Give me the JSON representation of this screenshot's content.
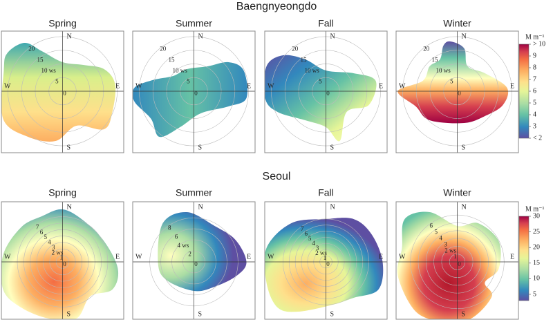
{
  "figure": {
    "directions": [
      "N",
      "E",
      "S",
      "W"
    ],
    "rows": [
      {
        "title": "Baengnyeongdo",
        "colorbar": {
          "unit": "M m⁻¹",
          "ylim": [
            2,
            10
          ],
          "yticks": [
            {
              "value": 2,
              "label": "< 2"
            },
            3,
            4,
            5,
            6,
            7,
            8,
            9,
            {
              "value": 10,
              "label": "> 10"
            }
          ]
        },
        "panels": [
          {
            "title": "Spring",
            "rlim": [
              0,
              22
            ],
            "rings": [
              {
                "value": 0,
                "label": "0"
              },
              {
                "value": 5,
                "label": "5"
              },
              {
                "value": 10,
                "label": "10 ws"
              },
              {
                "value": 15,
                "label": "15"
              },
              {
                "value": 20,
                "label": "20"
              }
            ]
          },
          {
            "title": "Summer",
            "rlim": [
              0,
              22
            ],
            "rings": [
              {
                "value": 0,
                "label": "0"
              },
              {
                "value": 5,
                "label": "5"
              },
              {
                "value": 10,
                "label": "10 ws"
              },
              {
                "value": 15,
                "label": "15"
              },
              {
                "value": 20,
                "label": "20"
              }
            ]
          },
          {
            "title": "Fall",
            "rlim": [
              0,
              22
            ],
            "rings": [
              {
                "value": 0,
                "label": "0"
              },
              {
                "value": 5,
                "label": "5"
              },
              {
                "value": 10,
                "label": "10 ws"
              },
              {
                "value": 15,
                "label": "15"
              },
              {
                "value": 20,
                "label": "20"
              }
            ]
          },
          {
            "title": "Winter",
            "rlim": [
              0,
              22
            ],
            "rings": [
              {
                "value": 0,
                "label": "0"
              },
              {
                "value": 5,
                "label": "5"
              },
              {
                "value": 10,
                "label": "10 ws"
              },
              {
                "value": 15,
                "label": "15"
              },
              {
                "value": 20,
                "label": "20"
              }
            ]
          }
        ]
      },
      {
        "title": "Seoul",
        "colorbar": {
          "unit": "M m⁻¹",
          "ylim": [
            3,
            30
          ],
          "yticks": [
            5,
            10,
            15,
            20,
            25,
            30
          ]
        },
        "panels": [
          {
            "title": "Spring",
            "rlim": [
              0,
              9.3
            ],
            "rings": [
              {
                "value": 0,
                "label": "0"
              },
              {
                "value": 1,
                "label": "1"
              },
              {
                "value": 2,
                "label": "2 ws"
              },
              {
                "value": 3,
                "label": "3"
              },
              {
                "value": 4,
                "label": "4"
              },
              {
                "value": 5,
                "label": "5"
              },
              {
                "value": 6,
                "label": "6"
              },
              {
                "value": 7,
                "label": "7"
              }
            ]
          },
          {
            "title": "Summer",
            "rlim": [
              0,
              10.9
            ],
            "rings": [
              {
                "value": 0,
                "label": "0"
              },
              {
                "value": 2,
                "label": "2"
              },
              {
                "value": 4,
                "label": "4 ws"
              },
              {
                "value": 6,
                "label": "6"
              },
              {
                "value": 8,
                "label": "8"
              }
            ]
          },
          {
            "title": "Fall",
            "rlim": [
              0,
              9.8
            ],
            "rings": [
              {
                "value": 0,
                "label": "0"
              },
              {
                "value": 1,
                "label": "1"
              },
              {
                "value": 2,
                "label": "2 ws"
              },
              {
                "value": 3,
                "label": "3"
              },
              {
                "value": 4,
                "label": "4"
              },
              {
                "value": 5,
                "label": "5"
              },
              {
                "value": 6,
                "label": "6"
              },
              {
                "value": 7,
                "label": "7"
              }
            ]
          },
          {
            "title": "Winter",
            "rlim": [
              0,
              7.7
            ],
            "rings": [
              {
                "value": 0,
                "label": "0"
              },
              {
                "value": 1,
                "label": "1"
              },
              {
                "value": 2,
                "label": "2 ws"
              },
              {
                "value": 3,
                "label": "3"
              },
              {
                "value": 4,
                "label": "4"
              },
              {
                "value": 5,
                "label": "5"
              },
              {
                "value": 6,
                "label": "6"
              }
            ]
          }
        ]
      }
    ]
  }
}
